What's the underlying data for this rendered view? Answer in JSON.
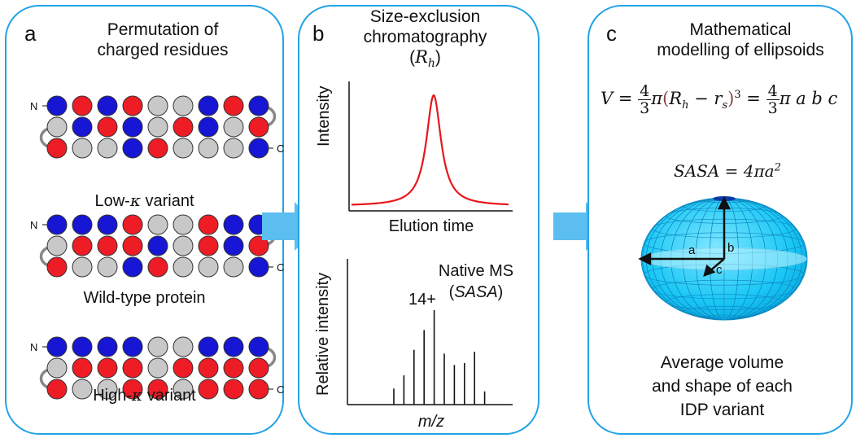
{
  "panel_a": {
    "letter": "a",
    "title_line1": "Permutation of",
    "title_line2": "charged residues",
    "n_label": "N",
    "c_label": "C",
    "low_label_prefix": "Low-",
    "kappa": "κ",
    "low_label_suffix": " variant",
    "wt_label": "Wild-type protein",
    "high_label_prefix": "High-",
    "high_label_suffix": " variant",
    "colors": {
      "red": "#ee1c25",
      "blue": "#1616d4",
      "grey": "#c8c8c8"
    },
    "sequences": {
      "low": [
        [
          "blue",
          "red",
          "blue",
          "red",
          "grey",
          "grey",
          "blue",
          "red",
          "blue"
        ],
        [
          "grey",
          "blue",
          "red",
          "blue",
          "grey",
          "red",
          "blue",
          "grey",
          "red"
        ],
        [
          "red",
          "grey",
          "grey",
          "blue",
          "red",
          "grey",
          "grey",
          "grey",
          "blue"
        ]
      ],
      "wt": [
        [
          "blue",
          "blue",
          "blue",
          "red",
          "grey",
          "grey",
          "red",
          "blue",
          "blue"
        ],
        [
          "grey",
          "red",
          "red",
          "red",
          "blue",
          "grey",
          "red",
          "blue",
          "red"
        ],
        [
          "red",
          "grey",
          "grey",
          "blue",
          "red",
          "grey",
          "grey",
          "grey",
          "blue"
        ]
      ],
      "high": [
        [
          "blue",
          "blue",
          "blue",
          "blue",
          "grey",
          "grey",
          "blue",
          "blue",
          "blue"
        ],
        [
          "grey",
          "red",
          "red",
          "red",
          "grey",
          "red",
          "red",
          "red",
          "red"
        ],
        [
          "red",
          "grey",
          "grey",
          "red",
          "red",
          "grey",
          "red",
          "red",
          "red"
        ]
      ]
    }
  },
  "panel_b": {
    "letter": "b",
    "title_line1": "Size-exclusion",
    "title_line2": "chromatography",
    "rh_open": "(",
    "rh_var": "R",
    "rh_sub": "h",
    "rh_close": ")",
    "sec_ylabel": "Intensity",
    "sec_xlabel": "Elution time",
    "ms_ylabel": "Relative intensity",
    "ms_xlabel": "m/z",
    "ms_title": "Native MS",
    "ms_sub_open": "(",
    "ms_sub_var": "SASA",
    "ms_sub_close": ")",
    "charge_label": "14+",
    "peak_color": "#e8161b",
    "ms_sticks": [
      0.17,
      0.31,
      0.58,
      0.79,
      1.0,
      0.54,
      0.42,
      0.44,
      0.56,
      0.14
    ]
  },
  "panel_c": {
    "letter": "c",
    "title_line1": "Mathematical",
    "title_line2": "modelling of ellipsoids",
    "eq_V": "V",
    "eq_eq": "=",
    "frac_num": "4",
    "frac_den": "3",
    "eq_pi": "π",
    "eq_paren_open": "(",
    "eq_Rh": "R",
    "eq_h": "h",
    "eq_minus": " − ",
    "eq_rs": "r",
    "eq_s": "s",
    "eq_paren_close": ")",
    "eq_cube": "3",
    "eq_abc": "π a b c",
    "sasa_eq": "SASA = 4πa",
    "sasa_sq": "2",
    "axis_a": "a",
    "axis_b": "b",
    "axis_c": "c",
    "bottom_line1": "Average volume",
    "bottom_line2": "and shape of each",
    "bottom_line3": "IDP variant",
    "ellipsoid_color": "#19c7f5"
  },
  "accent": "#22a3e6",
  "arrow_color": "#5cbdf0"
}
